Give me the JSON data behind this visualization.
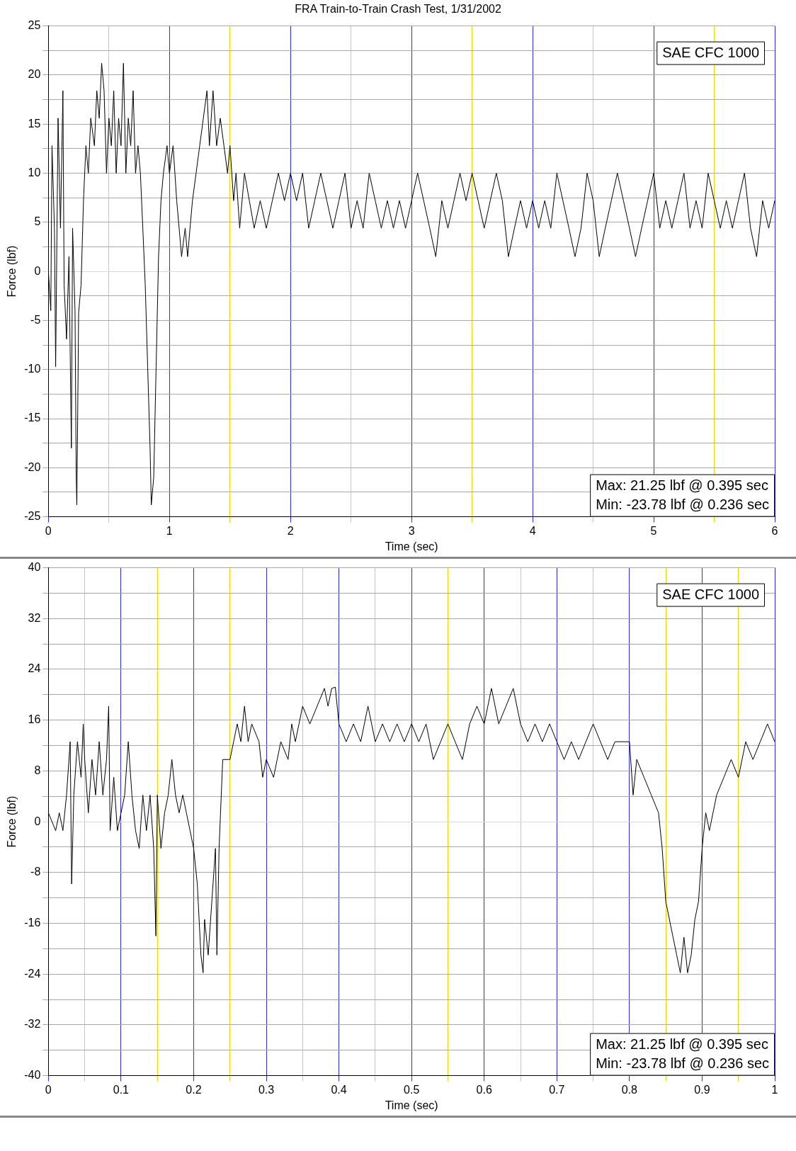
{
  "chart_data": [
    {
      "type": "line",
      "title": "FRA Train-to-Train Crash Test, 1/31/2002",
      "xlabel": "Time (sec)",
      "ylabel": "Force (lbf)",
      "legend": false,
      "grid": true,
      "marker": "none",
      "line_style": "solid",
      "xlim": [
        0,
        6
      ],
      "ylim": [
        -25,
        25
      ],
      "xticks": [
        0,
        {
          "value": 0.5,
          "label": null
        },
        1,
        {
          "value": 1.5,
          "label": null
        },
        2,
        {
          "value": 2.5,
          "label": null
        },
        3,
        {
          "value": 3.5,
          "label": null
        },
        4,
        {
          "value": 4.5,
          "label": null
        },
        5,
        {
          "value": 5.5,
          "label": null
        },
        6
      ],
      "yticks": [
        -25,
        {
          "value": -22.5,
          "label": null
        },
        -20,
        {
          "value": -17.5,
          "label": null
        },
        -15,
        {
          "value": -12.5,
          "label": null
        },
        -10,
        {
          "value": -7.5,
          "label": null
        },
        -5,
        {
          "value": -2.5,
          "label": null
        },
        0,
        {
          "value": 2.5,
          "label": null
        },
        5,
        {
          "value": 7.5,
          "label": null
        },
        10,
        {
          "value": 12.5,
          "label": null
        },
        15,
        {
          "value": 17.5,
          "label": null
        },
        20,
        {
          "value": 22.5,
          "label": null
        },
        25
      ],
      "annotations": [
        "SAE CFC 1000",
        "Max: 21.25 lbf @ 0.395 sec",
        "Min: -23.78 lbf @ 0.236 sec"
      ],
      "x": [
        0,
        0.02,
        0.03,
        0.05,
        0.06,
        0.08,
        0.1,
        0.12,
        0.13,
        0.15,
        0.17,
        0.19,
        0.2,
        0.22,
        0.23,
        0.235,
        0.25,
        0.27,
        0.29,
        0.31,
        0.33,
        0.35,
        0.38,
        0.4,
        0.42,
        0.44,
        0.46,
        0.48,
        0.5,
        0.52,
        0.54,
        0.56,
        0.58,
        0.6,
        0.62,
        0.64,
        0.66,
        0.68,
        0.7,
        0.72,
        0.74,
        0.76,
        0.78,
        0.8,
        0.82,
        0.84,
        0.85,
        0.87,
        0.89,
        0.91,
        0.93,
        0.95,
        0.98,
        1.0,
        1.03,
        1.06,
        1.08,
        1.1,
        1.13,
        1.15,
        1.17,
        1.19,
        1.22,
        1.25,
        1.28,
        1.31,
        1.33,
        1.36,
        1.39,
        1.42,
        1.45,
        1.48,
        1.5,
        1.53,
        1.55,
        1.58,
        1.62,
        1.66,
        1.7,
        1.75,
        1.8,
        1.85,
        1.9,
        1.95,
        2.0,
        2.05,
        2.1,
        2.15,
        2.2,
        2.25,
        2.3,
        2.35,
        2.4,
        2.45,
        2.5,
        2.55,
        2.6,
        2.65,
        2.7,
        2.75,
        2.8,
        2.85,
        2.9,
        2.95,
        3.0,
        3.05,
        3.1,
        3.15,
        3.2,
        3.25,
        3.3,
        3.35,
        3.4,
        3.45,
        3.5,
        3.55,
        3.6,
        3.65,
        3.7,
        3.75,
        3.8,
        3.85,
        3.9,
        3.95,
        4.0,
        4.05,
        4.1,
        4.15,
        4.2,
        4.25,
        4.3,
        4.35,
        4.4,
        4.45,
        4.5,
        4.55,
        4.6,
        4.65,
        4.7,
        4.75,
        4.8,
        4.85,
        4.9,
        4.95,
        5.0,
        5.05,
        5.1,
        5.15,
        5.2,
        5.25,
        5.3,
        5.35,
        5.4,
        5.45,
        5.5,
        5.55,
        5.6,
        5.65,
        5.7,
        5.75,
        5.8,
        5.85,
        5.9,
        5.95,
        6.0
      ],
      "series": [
        {
          "color": "#000000",
          "values": [
            0,
            -4,
            12.8,
            4.4,
            -9.7,
            15.6,
            4.4,
            18.4,
            -1.4,
            -6.9,
            1.5,
            -18,
            4.4,
            -4,
            -21,
            -23.8,
            -4.2,
            -1.4,
            7.2,
            12.8,
            10,
            15.6,
            12.8,
            18.4,
            15.6,
            21.2,
            18.4,
            10,
            15.6,
            12.8,
            18.4,
            10,
            15.6,
            12.8,
            21.2,
            10,
            15.6,
            12.8,
            18.4,
            10,
            12.8,
            10,
            4.4,
            -1.4,
            -9.7,
            -18,
            -23.8,
            -21,
            -9.7,
            1.5,
            7.2,
            10,
            12.8,
            10,
            12.8,
            7.2,
            4.4,
            1.5,
            4.4,
            1.5,
            4.4,
            7.2,
            10,
            12.8,
            15.6,
            18.4,
            12.8,
            18.4,
            12.8,
            15.6,
            12.8,
            10,
            12.8,
            7.2,
            10,
            4.4,
            10,
            7.2,
            4.4,
            7.2,
            4.4,
            7.2,
            10,
            7.2,
            10,
            7.2,
            10,
            4.4,
            7.2,
            10,
            7.2,
            4.4,
            7.2,
            10,
            4.4,
            7.2,
            4.4,
            10,
            7.2,
            4.4,
            7.2,
            4.4,
            7.2,
            4.4,
            7.2,
            10,
            7.2,
            4.4,
            1.5,
            7.2,
            4.4,
            7.2,
            10,
            7.2,
            10,
            7.2,
            4.4,
            7.2,
            10,
            7.2,
            1.5,
            4.4,
            7.2,
            4.4,
            7.2,
            4.4,
            7.2,
            4.4,
            10,
            7.2,
            4.4,
            1.5,
            4.4,
            10,
            7.2,
            1.5,
            4.4,
            7.2,
            10,
            7.2,
            4.4,
            1.5,
            4.4,
            7.2,
            10,
            4.4,
            7.2,
            4.4,
            7.2,
            10,
            4.4,
            7.2,
            4.4,
            10,
            7.2,
            4.4,
            7.2,
            4.4,
            7.2,
            10,
            4.4,
            1.5,
            7.2,
            4.4,
            7.2
          ]
        }
      ]
    },
    {
      "type": "line",
      "xlabel": "Time (sec)",
      "ylabel": "Force (lbf)",
      "legend": false,
      "grid": true,
      "marker": "none",
      "line_style": "solid",
      "xlim": [
        0,
        1
      ],
      "ylim": [
        -40,
        40
      ],
      "xticks": [
        0,
        {
          "value": 0.05,
          "label": null
        },
        0.1,
        {
          "value": 0.15,
          "label": null
        },
        0.2,
        {
          "value": 0.25,
          "label": null
        },
        0.3,
        {
          "value": 0.35,
          "label": null
        },
        0.4,
        {
          "value": 0.45,
          "label": null
        },
        0.5,
        {
          "value": 0.55,
          "label": null
        },
        0.6,
        {
          "value": 0.65,
          "label": null
        },
        0.7,
        {
          "value": 0.75,
          "label": null
        },
        0.8,
        {
          "value": 0.85,
          "label": null
        },
        0.9,
        {
          "value": 0.95,
          "label": null
        },
        1
      ],
      "yticks": [
        -40,
        {
          "value": -36,
          "label": null
        },
        -32,
        {
          "value": -28,
          "label": null
        },
        -24,
        {
          "value": -20,
          "label": null
        },
        -16,
        {
          "value": -12,
          "label": null
        },
        -8,
        {
          "value": -4,
          "label": null
        },
        0,
        {
          "value": 4,
          "label": null
        },
        8,
        {
          "value": 12,
          "label": null
        },
        16,
        {
          "value": 20,
          "label": null
        },
        24,
        {
          "value": 28,
          "label": null
        },
        32,
        {
          "value": 36,
          "label": null
        },
        40
      ],
      "annotations": [
        "SAE CFC 1000",
        "Max: 21.25 lbf @ 0.395 sec",
        "Min: -23.78 lbf @ 0.236 sec"
      ],
      "x": [
        0,
        0.01,
        0.015,
        0.02,
        0.025,
        0.03,
        0.032,
        0.035,
        0.04,
        0.045,
        0.048,
        0.05,
        0.055,
        0.06,
        0.065,
        0.07,
        0.075,
        0.08,
        0.083,
        0.085,
        0.09,
        0.095,
        0.1,
        0.105,
        0.11,
        0.115,
        0.12,
        0.125,
        0.13,
        0.135,
        0.14,
        0.145,
        0.148,
        0.15,
        0.155,
        0.16,
        0.165,
        0.17,
        0.175,
        0.18,
        0.185,
        0.19,
        0.195,
        0.2,
        0.205,
        0.21,
        0.213,
        0.215,
        0.22,
        0.225,
        0.23,
        0.232,
        0.235,
        0.24,
        0.25,
        0.255,
        0.26,
        0.265,
        0.27,
        0.275,
        0.28,
        0.29,
        0.295,
        0.3,
        0.31,
        0.315,
        0.32,
        0.33,
        0.335,
        0.34,
        0.345,
        0.35,
        0.36,
        0.37,
        0.38,
        0.385,
        0.39,
        0.395,
        0.4,
        0.41,
        0.42,
        0.43,
        0.44,
        0.45,
        0.46,
        0.47,
        0.48,
        0.49,
        0.5,
        0.51,
        0.52,
        0.53,
        0.54,
        0.55,
        0.56,
        0.57,
        0.58,
        0.59,
        0.6,
        0.61,
        0.62,
        0.63,
        0.64,
        0.65,
        0.66,
        0.67,
        0.68,
        0.69,
        0.7,
        0.71,
        0.72,
        0.73,
        0.74,
        0.75,
        0.76,
        0.77,
        0.78,
        0.8,
        0.805,
        0.81,
        0.82,
        0.83,
        0.84,
        0.845,
        0.85,
        0.86,
        0.865,
        0.87,
        0.875,
        0.88,
        0.885,
        0.89,
        0.895,
        0.9,
        0.905,
        0.91,
        0.92,
        0.93,
        0.94,
        0.95,
        0.96,
        0.97,
        0.98,
        0.99,
        1.0
      ],
      "series": [
        {
          "color": "#000000",
          "values": [
            1.4,
            -1.4,
            1.4,
            -1.4,
            4.2,
            12.6,
            -9.8,
            4.2,
            12.6,
            7,
            15.4,
            9.8,
            1.4,
            9.8,
            4.2,
            12.6,
            4.2,
            9.8,
            18.2,
            -1.4,
            7,
            -1.4,
            1.4,
            4.2,
            12.6,
            4.2,
            -1.4,
            -4.2,
            4.2,
            -1.4,
            4.2,
            -4.2,
            -18,
            4.2,
            -4.2,
            1.4,
            4.2,
            9.8,
            4.2,
            1.4,
            4.2,
            1.4,
            -1.4,
            -4.2,
            -9.8,
            -21,
            -23.8,
            -15.4,
            -21,
            -12.6,
            -4.2,
            -21,
            -4.2,
            9.8,
            9.8,
            12.6,
            15.4,
            12.6,
            18.2,
            12.6,
            15.4,
            12.6,
            7,
            9.8,
            7,
            9.8,
            12.6,
            9.8,
            15.4,
            12.6,
            15.4,
            18.2,
            15.4,
            18.2,
            21,
            18.2,
            21,
            21.2,
            15.4,
            12.6,
            15.4,
            12.6,
            18.2,
            12.6,
            15.4,
            12.6,
            15.4,
            12.6,
            15.4,
            12.6,
            15.4,
            9.8,
            12.6,
            15.4,
            12.6,
            9.8,
            15.4,
            18.2,
            15.4,
            21,
            15.4,
            18.2,
            21,
            15.4,
            12.6,
            15.4,
            12.6,
            15.4,
            12.6,
            9.8,
            12.6,
            9.8,
            12.6,
            15.4,
            12.6,
            9.8,
            12.6,
            12.6,
            4.2,
            9.8,
            7,
            4.2,
            1.4,
            -4.2,
            -12.6,
            -18.2,
            -21,
            -23.8,
            -18.2,
            -23.8,
            -21,
            -15.4,
            -12.6,
            -4.2,
            1.4,
            -1.4,
            4.2,
            7,
            9.8,
            7,
            12.6,
            9.8,
            12.6,
            15.4,
            12.6
          ]
        }
      ]
    }
  ]
}
